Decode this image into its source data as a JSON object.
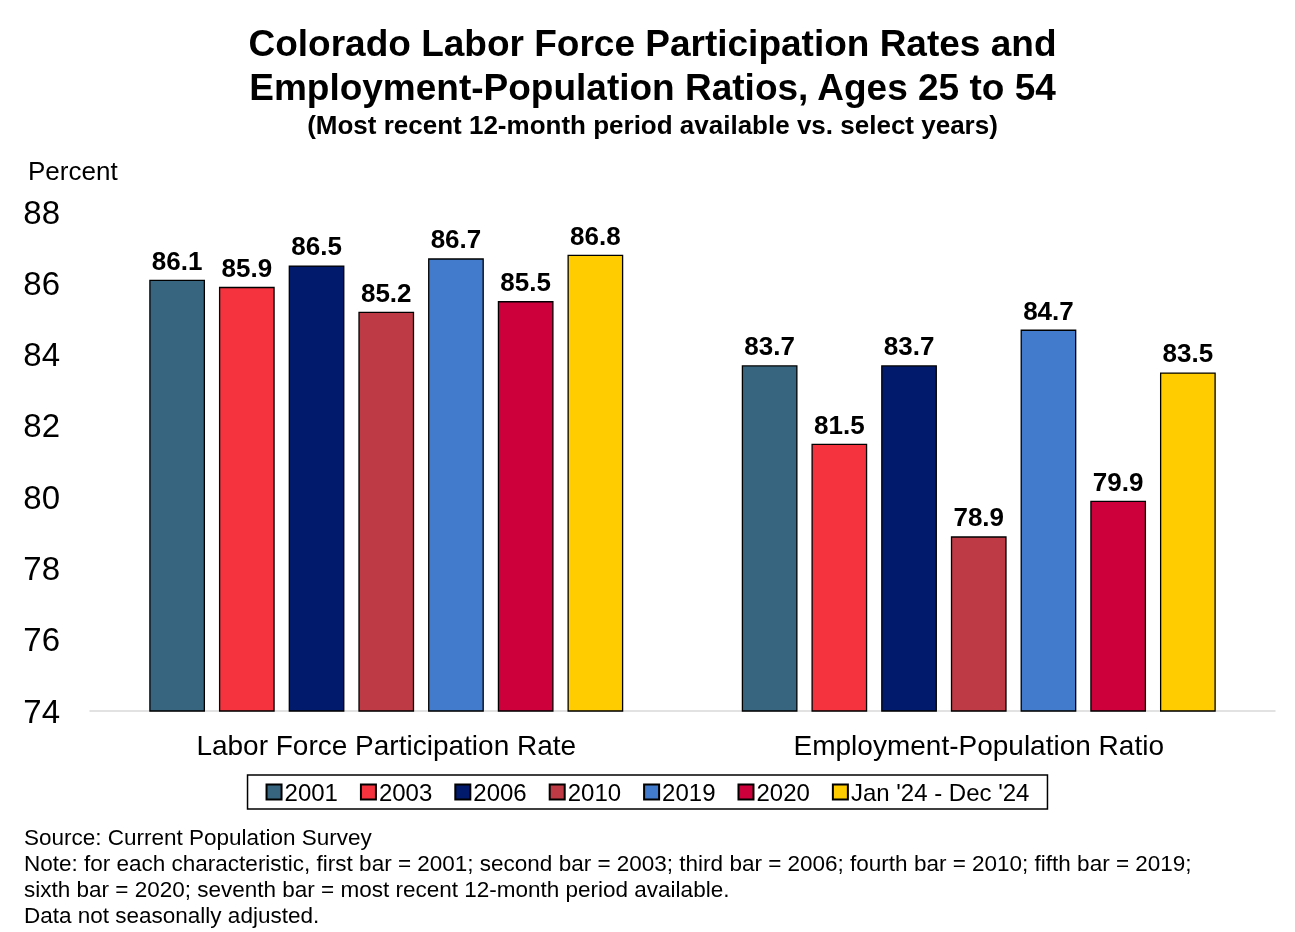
{
  "chart_data": {
    "type": "bar",
    "title": "Colorado Labor Force Participation Rates and Employment-Population Ratios, Ages 25 to 54",
    "subtitle": "(Most recent 12-month period available vs. select years)",
    "ylabel": "Percent",
    "categories": [
      "Labor Force Participation Rate",
      "Employment-Population Ratio"
    ],
    "series": [
      {
        "name": "2001",
        "color": "#37647f",
        "values": [
          86.1,
          83.7
        ]
      },
      {
        "name": "2003",
        "color": "#f5333f",
        "values": [
          85.9,
          81.5
        ]
      },
      {
        "name": "2006",
        "color": "#021a6b",
        "values": [
          86.5,
          83.7
        ]
      },
      {
        "name": "2010",
        "color": "#be3a44",
        "values": [
          85.2,
          78.9
        ]
      },
      {
        "name": "2019",
        "color": "#427bcb",
        "values": [
          86.7,
          84.7
        ]
      },
      {
        "name": "2020",
        "color": "#cd003c",
        "values": [
          85.5,
          79.9
        ]
      },
      {
        "name": "Jan '24 - Dec '24",
        "color": "#ffcc00",
        "values": [
          86.8,
          83.5
        ]
      }
    ],
    "ylim": [
      74,
      88
    ],
    "yticks": [
      74,
      76,
      78,
      80,
      82,
      84,
      86,
      88
    ],
    "data_labels": true,
    "legend": "bottom",
    "annotations": [
      "Source: Current Population Survey",
      "Note: for each characteristic, first bar = 2001; second bar = 2003; third bar = 2006; fourth bar = 2010; fifth bar = 2019; sixth bar = 2020; seventh bar = most recent 12-month period available.",
      "Data not seasonally adjusted."
    ]
  }
}
